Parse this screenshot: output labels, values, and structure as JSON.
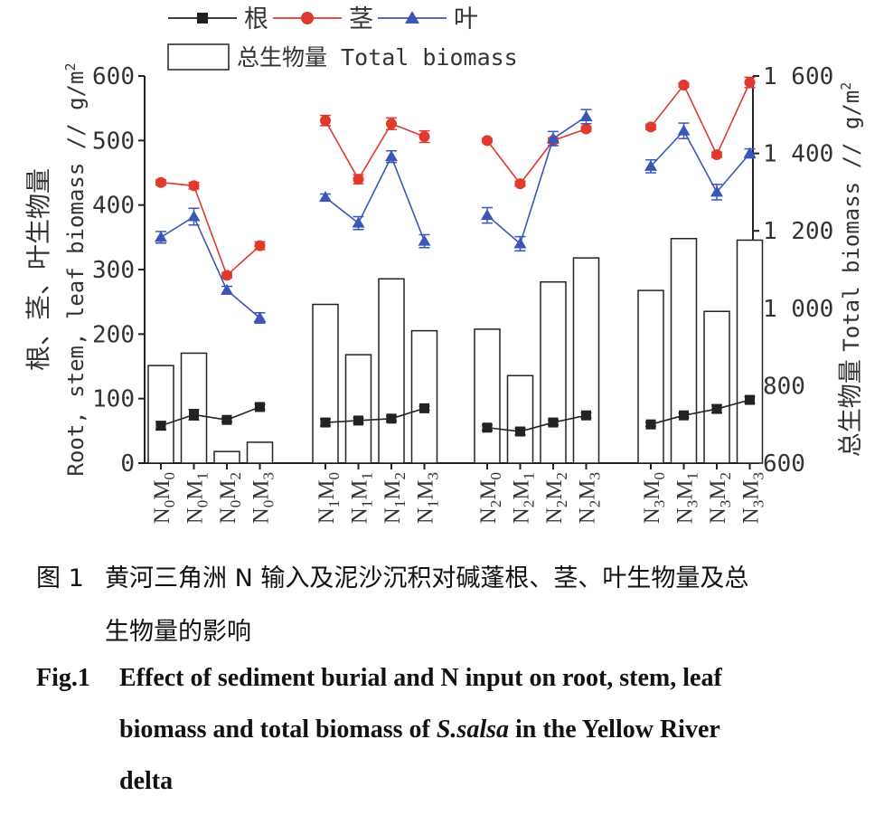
{
  "chart_data": {
    "type": "bar+line",
    "categories": [
      {
        "id": "N0M0",
        "n_sub": "0",
        "m_sub": "0"
      },
      {
        "id": "N0M1",
        "n_sub": "0",
        "m_sub": "1"
      },
      {
        "id": "N0M2",
        "n_sub": "0",
        "m_sub": "2"
      },
      {
        "id": "N0M3",
        "n_sub": "0",
        "m_sub": "3"
      },
      {
        "id": "N1M0",
        "n_sub": "1",
        "m_sub": "0"
      },
      {
        "id": "N1M1",
        "n_sub": "1",
        "m_sub": "1"
      },
      {
        "id": "N1M2",
        "n_sub": "1",
        "m_sub": "2"
      },
      {
        "id": "N1M3",
        "n_sub": "1",
        "m_sub": "3"
      },
      {
        "id": "N2M0",
        "n_sub": "2",
        "m_sub": "0"
      },
      {
        "id": "N2M1",
        "n_sub": "2",
        "m_sub": "1"
      },
      {
        "id": "N2M2",
        "n_sub": "2",
        "m_sub": "2"
      },
      {
        "id": "N2M3",
        "n_sub": "2",
        "m_sub": "3"
      },
      {
        "id": "N3M0",
        "n_sub": "3",
        "m_sub": "0"
      },
      {
        "id": "N3M1",
        "n_sub": "3",
        "m_sub": "1"
      },
      {
        "id": "N3M2",
        "n_sub": "3",
        "m_sub": "2"
      },
      {
        "id": "N3M3",
        "n_sub": "3",
        "m_sub": "3"
      }
    ],
    "groups": 4,
    "per_group": 4,
    "bars": {
      "name": "总生物量 Total biomass",
      "axis": "right",
      "values": [
        852,
        884,
        630,
        654,
        1010,
        880,
        1076,
        942,
        946,
        826,
        1068,
        1130,
        1046,
        1180,
        992,
        1176
      ]
    },
    "series": [
      {
        "name": "根",
        "marker": "square",
        "color": "#222222",
        "axis": "left",
        "values": [
          58,
          75,
          67,
          87,
          63,
          66,
          69,
          85,
          55,
          49,
          63,
          74,
          60,
          74,
          84,
          98
        ],
        "errors": [
          6,
          8,
          3,
          4,
          5,
          4,
          4,
          3,
          4,
          5,
          4,
          4,
          3,
          3,
          6,
          5
        ]
      },
      {
        "name": "茎",
        "marker": "circle",
        "color": "#e03a2f",
        "axis": "left",
        "values": [
          435,
          430,
          291,
          337,
          531,
          440,
          526,
          506,
          500,
          433,
          500,
          518,
          521,
          586,
          478,
          590
        ],
        "errors": [
          4,
          5,
          4,
          6,
          8,
          7,
          9,
          9,
          3,
          4,
          4,
          4,
          4,
          3,
          4,
          8
        ]
      },
      {
        "name": "叶",
        "marker": "triangle",
        "color": "#3b56b5",
        "axis": "left",
        "values": [
          350,
          382,
          268,
          225,
          412,
          372,
          475,
          344,
          384,
          340,
          503,
          537,
          460,
          515,
          420,
          480
        ],
        "errors": [
          9,
          13,
          6,
          8,
          5,
          10,
          9,
          10,
          12,
          11,
          11,
          11,
          10,
          12,
          12,
          7
        ]
      }
    ],
    "left_axis": {
      "label_cn": "根、茎、叶生物量",
      "label_en": "Root, stem, leaf biomass // g/m",
      "label_sup": "2",
      "ylim": [
        0,
        600
      ],
      "ticks": [
        "0",
        "100",
        "200",
        "300",
        "400",
        "500",
        "600"
      ]
    },
    "right_axis": {
      "label_cn": "总生物量",
      "label_en": "Total biomass // g/m",
      "label_sup": "2",
      "ylim": [
        600,
        1600
      ],
      "ticks": [
        "600",
        "800",
        "1 000",
        "1 200",
        "1 400",
        "1 600"
      ]
    },
    "legend": {
      "placement": "top-left",
      "root": "根",
      "stem": "茎",
      "leaf": "叶",
      "total": "总生物量 Total biomass"
    },
    "grid": false
  },
  "caption": {
    "cn_label": "图 1",
    "cn_line1": "黄河三角洲 N 输入及泥沙沉积对碱蓬根、茎、叶生物量及总",
    "cn_line2": "生物量的影响",
    "en_label": "Fig.1",
    "en_line1": "Effect of sediment burial and N input on root, stem, leaf",
    "en_line2_pre": "biomass and total biomass of ",
    "en_species": "S.salsa",
    "en_line2_post": " in the Yellow River",
    "en_line3": "delta"
  }
}
